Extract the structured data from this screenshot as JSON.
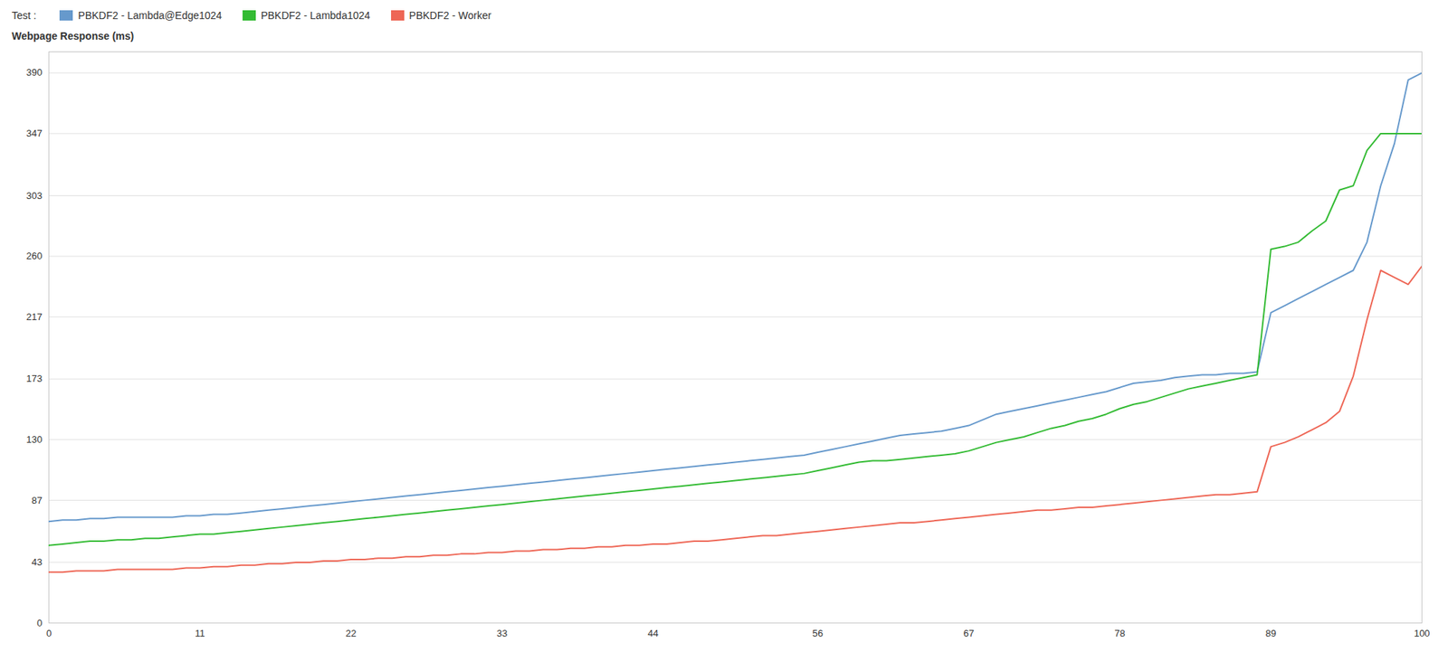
{
  "chart_data": {
    "type": "line",
    "y_label": "Webpage Response (ms)",
    "legend_title": "Test : ",
    "legend": "top-left",
    "grid": "y",
    "x": [
      0,
      1,
      2,
      3,
      4,
      5,
      6,
      7,
      8,
      9,
      10,
      11,
      12,
      13,
      14,
      15,
      16,
      17,
      18,
      19,
      20,
      21,
      22,
      23,
      24,
      25,
      26,
      27,
      28,
      29,
      30,
      31,
      32,
      33,
      34,
      35,
      36,
      37,
      38,
      39,
      40,
      41,
      42,
      43,
      44,
      45,
      46,
      47,
      48,
      49,
      50,
      51,
      52,
      53,
      54,
      55,
      56,
      57,
      58,
      59,
      60,
      61,
      62,
      63,
      64,
      65,
      66,
      67,
      68,
      69,
      70,
      71,
      72,
      73,
      74,
      75,
      76,
      77,
      78,
      79,
      80,
      81,
      82,
      83,
      84,
      85,
      86,
      87,
      88,
      89,
      90,
      91,
      92,
      93,
      94,
      95,
      96,
      97,
      98,
      99,
      100
    ],
    "series": [
      {
        "name": "PBKDF2 - Lambda@Edge1024",
        "color": "#6699CC",
        "values": [
          72,
          73,
          73,
          74,
          74,
          75,
          75,
          75,
          75,
          75,
          76,
          76,
          77,
          77,
          78,
          79,
          80,
          81,
          82,
          83,
          84,
          85,
          86,
          87,
          88,
          89,
          90,
          91,
          92,
          93,
          94,
          95,
          96,
          97,
          98,
          99,
          100,
          101,
          102,
          103,
          104,
          105,
          106,
          107,
          108,
          109,
          110,
          111,
          112,
          113,
          114,
          115,
          116,
          117,
          118,
          119,
          121,
          123,
          125,
          127,
          129,
          131,
          133,
          134,
          135,
          136,
          138,
          140,
          144,
          148,
          150,
          152,
          154,
          156,
          158,
          160,
          162,
          164,
          167,
          170,
          171,
          172,
          174,
          175,
          176,
          176,
          177,
          177,
          178,
          220,
          225,
          230,
          235,
          240,
          245,
          250,
          270,
          310,
          340,
          385,
          390
        ]
      },
      {
        "name": "PBKDF2 - Lambda1024",
        "color": "#33BB33",
        "values": [
          55,
          56,
          57,
          58,
          58,
          59,
          59,
          60,
          60,
          61,
          62,
          63,
          63,
          64,
          65,
          66,
          67,
          68,
          69,
          70,
          71,
          72,
          73,
          74,
          75,
          76,
          77,
          78,
          79,
          80,
          81,
          82,
          83,
          84,
          85,
          86,
          87,
          88,
          89,
          90,
          91,
          92,
          93,
          94,
          95,
          96,
          97,
          98,
          99,
          100,
          101,
          102,
          103,
          104,
          105,
          106,
          108,
          110,
          112,
          114,
          115,
          115,
          116,
          117,
          118,
          119,
          120,
          122,
          125,
          128,
          130,
          132,
          135,
          138,
          140,
          143,
          145,
          148,
          152,
          155,
          157,
          160,
          163,
          166,
          168,
          170,
          172,
          174,
          176,
          265,
          267,
          270,
          278,
          285,
          307,
          310,
          335,
          347,
          347,
          347,
          347
        ]
      },
      {
        "name": "PBKDF2 - Worker",
        "color": "#EE6655",
        "values": [
          36,
          36,
          37,
          37,
          37,
          38,
          38,
          38,
          38,
          38,
          39,
          39,
          40,
          40,
          41,
          41,
          42,
          42,
          43,
          43,
          44,
          44,
          45,
          45,
          46,
          46,
          47,
          47,
          48,
          48,
          49,
          49,
          50,
          50,
          51,
          51,
          52,
          52,
          53,
          53,
          54,
          54,
          55,
          55,
          56,
          56,
          57,
          58,
          58,
          59,
          60,
          61,
          62,
          62,
          63,
          64,
          65,
          66,
          67,
          68,
          69,
          70,
          71,
          71,
          72,
          73,
          74,
          75,
          76,
          77,
          78,
          79,
          80,
          80,
          81,
          82,
          82,
          83,
          84,
          85,
          86,
          87,
          88,
          89,
          90,
          91,
          91,
          92,
          93,
          125,
          128,
          132,
          137,
          142,
          150,
          175,
          215,
          250,
          245,
          240,
          253
        ]
      }
    ],
    "xlim": [
      0,
      100
    ],
    "xticks": [
      0,
      11,
      22,
      33,
      44,
      56,
      67,
      78,
      89,
      100
    ],
    "ylim": [
      0,
      405
    ],
    "yticks": [
      0,
      43,
      87,
      130,
      173,
      217,
      260,
      303,
      347,
      390
    ]
  }
}
